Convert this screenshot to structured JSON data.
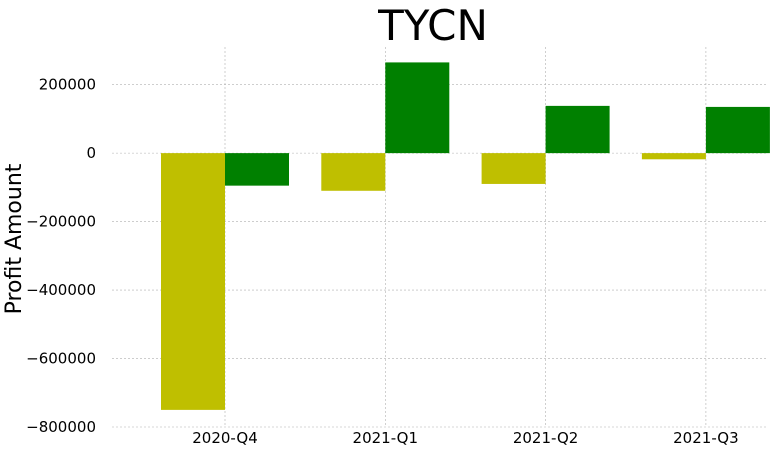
{
  "chart_data": {
    "type": "bar",
    "title": "TYCN",
    "xlabel": "",
    "ylabel": "Profit Amount",
    "categories": [
      "2020-Q4",
      "2021-Q1",
      "2021-Q2",
      "2021-Q3"
    ],
    "series": [
      {
        "values": [
          -750000,
          -110000,
          -90000,
          -18000
        ],
        "color": "#bfbf00"
      },
      {
        "values": [
          -95000,
          265000,
          138000,
          135000
        ],
        "color": "#008000"
      }
    ],
    "ylim": [
      -800000,
      310000
    ],
    "yticks": [
      -800000,
      -600000,
      -400000,
      -200000,
      0,
      200000
    ],
    "ytick_labels": [
      "−800000",
      "−600000",
      "−400000",
      "−200000",
      "0",
      "200000"
    ],
    "grid": true,
    "legend": "none"
  }
}
